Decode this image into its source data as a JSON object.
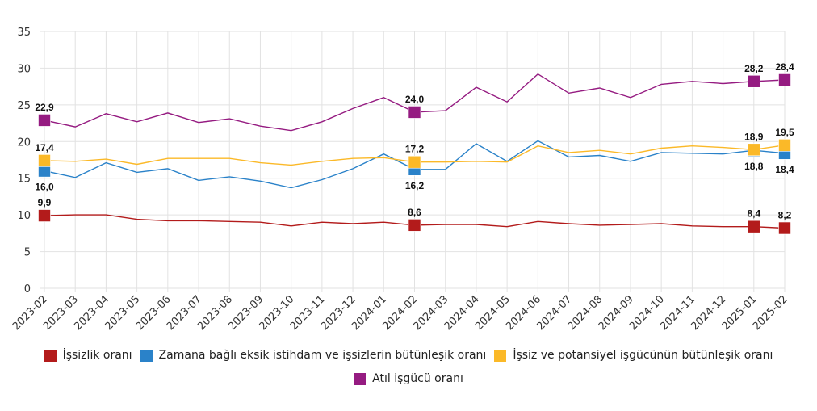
{
  "chart_data": {
    "type": "line",
    "title": "",
    "xlabel": "",
    "ylabel": "",
    "ylim": [
      0,
      35
    ],
    "yticks": [
      0,
      5,
      10,
      15,
      20,
      25,
      30,
      35
    ],
    "grid": true,
    "legend_position": "bottom",
    "x": [
      "2023-02",
      "2023-03",
      "2023-04",
      "2023-05",
      "2023-06",
      "2023-07",
      "2023-08",
      "2023-09",
      "2023-10",
      "2023-11",
      "2023-12",
      "2024-01",
      "2024-02",
      "2024-03",
      "2024-04",
      "2024-05",
      "2024-06",
      "2024-07",
      "2024-08",
      "2024-09",
      "2024-10",
      "2024-11",
      "2024-12",
      "2025-01",
      "2025-02"
    ],
    "series": [
      {
        "name": "İşsizlik oranı",
        "color": "#b31b1b",
        "values": [
          9.9,
          10.0,
          10.0,
          9.4,
          9.2,
          9.2,
          9.1,
          9.0,
          8.5,
          9.0,
          8.8,
          9.0,
          8.6,
          8.7,
          8.7,
          8.4,
          9.1,
          8.8,
          8.6,
          8.7,
          8.8,
          8.5,
          8.4,
          8.4,
          8.2
        ],
        "markers": [
          {
            "index": 0,
            "label": "9,9",
            "pos": "above"
          },
          {
            "index": 12,
            "label": "8,6",
            "pos": "above"
          },
          {
            "index": 23,
            "label": "8,4",
            "pos": "above"
          },
          {
            "index": 24,
            "label": "8,2",
            "pos": "above"
          }
        ]
      },
      {
        "name": "Zamana bağlı eksik istihdam ve işsizlerin bütünleşik oranı",
        "color": "#2a82c9",
        "values": [
          16.0,
          15.1,
          17.1,
          15.8,
          16.3,
          14.7,
          15.2,
          14.6,
          13.7,
          14.8,
          16.3,
          18.3,
          16.2,
          16.2,
          19.7,
          17.3,
          20.1,
          17.9,
          18.1,
          17.3,
          18.5,
          18.4,
          18.3,
          18.8,
          18.4
        ],
        "markers": [
          {
            "index": 0,
            "label": "16,0",
            "pos": "below"
          },
          {
            "index": 12,
            "label": "16,2",
            "pos": "below"
          },
          {
            "index": 23,
            "label": "18,8",
            "pos": "below"
          },
          {
            "index": 24,
            "label": "18,4",
            "pos": "below"
          }
        ]
      },
      {
        "name": "İşsiz ve potansiyel işgücünün bütünleşik oranı",
        "color": "#fbb928",
        "values": [
          17.4,
          17.3,
          17.6,
          16.9,
          17.7,
          17.7,
          17.7,
          17.1,
          16.8,
          17.3,
          17.7,
          17.8,
          17.2,
          17.2,
          17.3,
          17.2,
          19.4,
          18.5,
          18.8,
          18.3,
          19.1,
          19.4,
          19.2,
          18.9,
          19.5
        ],
        "markers": [
          {
            "index": 0,
            "label": "17,4",
            "pos": "above"
          },
          {
            "index": 12,
            "label": "17,2",
            "pos": "above"
          },
          {
            "index": 23,
            "label": "18,9",
            "pos": "above"
          },
          {
            "index": 24,
            "label": "19,5",
            "pos": "above"
          }
        ]
      },
      {
        "name": "Atıl işgücü oranı",
        "color": "#951b81",
        "values": [
          22.9,
          22.0,
          23.8,
          22.7,
          23.9,
          22.6,
          23.1,
          22.1,
          21.5,
          22.7,
          24.5,
          26.0,
          24.0,
          24.2,
          27.4,
          25.4,
          29.2,
          26.6,
          27.3,
          26.0,
          27.8,
          28.2,
          27.9,
          28.2,
          28.4
        ],
        "markers": [
          {
            "index": 0,
            "label": "22,9",
            "pos": "above"
          },
          {
            "index": 12,
            "label": "24,0",
            "pos": "above"
          },
          {
            "index": 23,
            "label": "28,2",
            "pos": "above"
          },
          {
            "index": 24,
            "label": "28,4",
            "pos": "above"
          }
        ]
      }
    ]
  },
  "legend": {
    "row1": [
      0,
      1,
      2
    ],
    "row2": [
      3
    ]
  }
}
